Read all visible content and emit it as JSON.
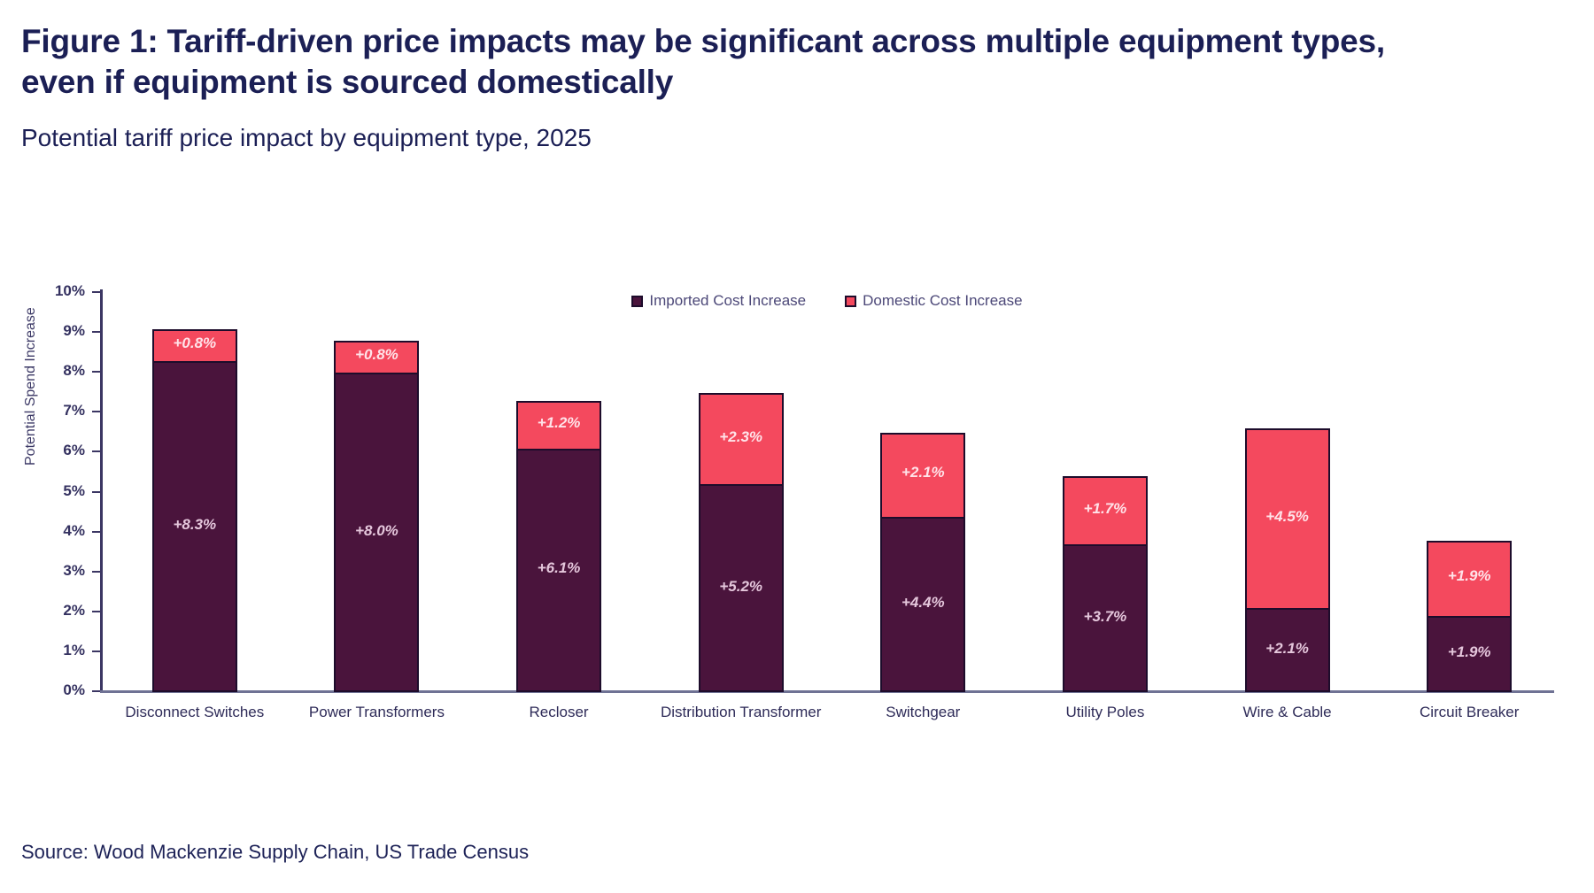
{
  "page": {
    "title": "Figure 1: Tariff-driven price impacts may be significant across multiple equipment types, even if equipment is sourced domestically",
    "subtitle": "Potential tariff price impact by equipment type, 2025",
    "source": "Source: Wood Mackenzie Supply Chain, US Trade Census"
  },
  "colors": {
    "imported_fill": "#4a143c",
    "domestic_fill": "#f4495e",
    "bar_border": "#1d0c2b",
    "title_text": "#1b1f55",
    "axis_line": "#3b3663",
    "baseline": "#6f7294"
  },
  "chart_data": {
    "type": "bar",
    "stacked": true,
    "title": "Potential tariff price impact by equipment type, 2025",
    "xlabel": "",
    "ylabel": "Potential Spend Increase",
    "ylim": [
      0,
      10
    ],
    "y_tick_labels": [
      "0%",
      "1%",
      "2%",
      "3%",
      "4%",
      "5%",
      "6%",
      "7%",
      "8%",
      "9%",
      "10%"
    ],
    "grid": false,
    "legend_position": "top-center",
    "value_label_format": "+{value}%",
    "categories": [
      "Disconnect Switches",
      "Power Transformers",
      "Recloser",
      "Distribution Transformer",
      "Switchgear",
      "Utility Poles",
      "Wire & Cable",
      "Circuit Breaker"
    ],
    "series": [
      {
        "name": "Imported Cost Increase",
        "color": "#4a143c",
        "values": [
          8.3,
          8.0,
          6.1,
          5.2,
          4.4,
          3.7,
          2.1,
          1.9
        ],
        "labels": [
          "+8.3%",
          "+8.0%",
          "+6.1%",
          "+5.2%",
          "+4.4%",
          "+3.7%",
          "+2.1%",
          "+1.9%"
        ]
      },
      {
        "name": "Domestic Cost Increase",
        "color": "#f4495e",
        "values": [
          0.8,
          0.8,
          1.2,
          2.3,
          2.1,
          1.7,
          4.5,
          1.9
        ],
        "labels": [
          "+0.8%",
          "+0.8%",
          "+1.2%",
          "+2.3%",
          "+2.1%",
          "+1.7%",
          "+4.5%",
          "+1.9%"
        ]
      }
    ]
  }
}
